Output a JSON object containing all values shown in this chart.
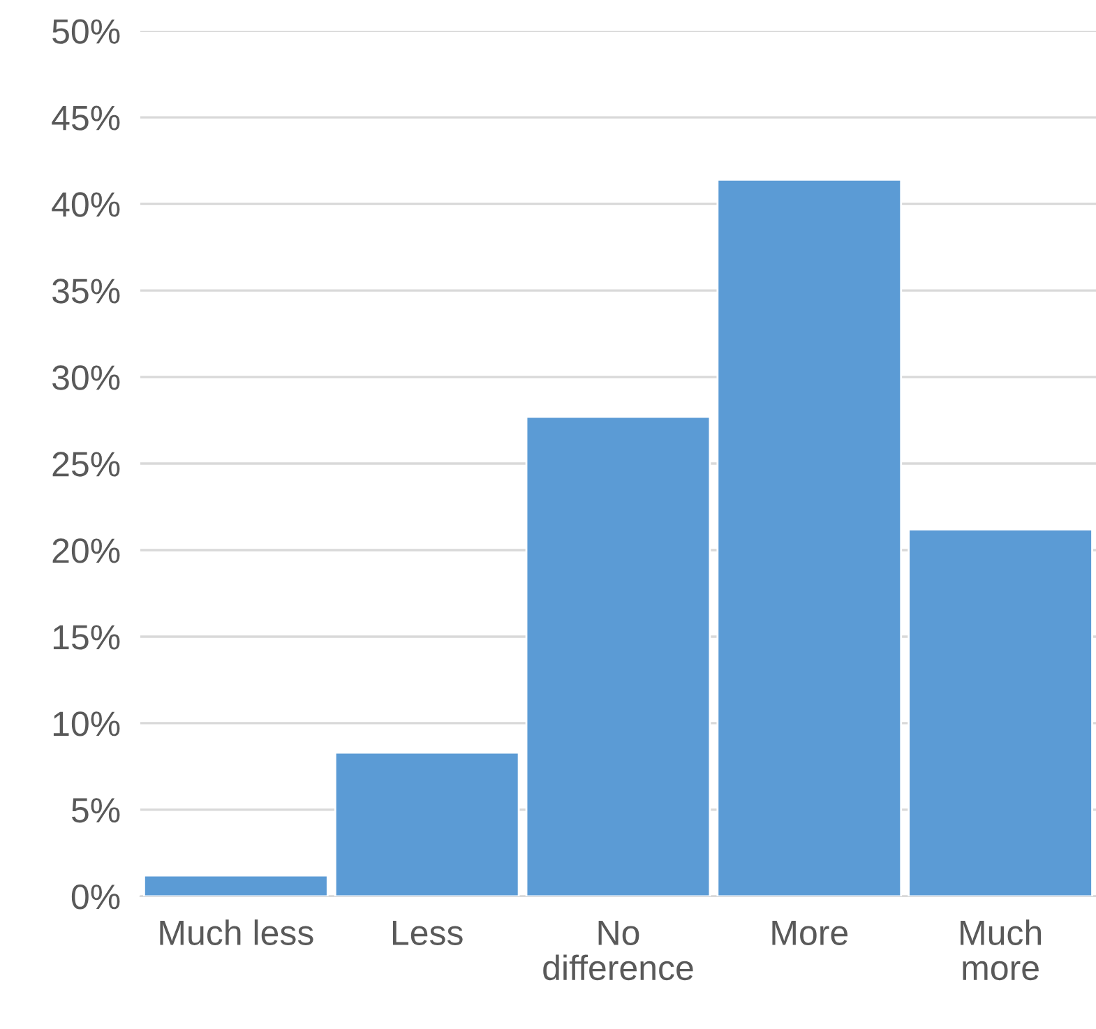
{
  "chart_data": {
    "type": "bar",
    "categories": [
      "Much less",
      "Less",
      "No\ndifference",
      "More",
      "Much\nmore"
    ],
    "values": [
      1.2,
      8.3,
      27.7,
      41.4,
      21.2
    ],
    "color": "#5b9bd5",
    "ylim": [
      0,
      50
    ],
    "yticks": [
      {
        "value": 0,
        "label": "0%"
      },
      {
        "value": 5,
        "label": "5%"
      },
      {
        "value": 10,
        "label": "10%"
      },
      {
        "value": 15,
        "label": "15%"
      },
      {
        "value": 20,
        "label": "20%"
      },
      {
        "value": 25,
        "label": "25%"
      },
      {
        "value": 30,
        "label": "30%"
      },
      {
        "value": 35,
        "label": "35%"
      },
      {
        "value": 40,
        "label": "40%"
      },
      {
        "value": 45,
        "label": "45%"
      },
      {
        "value": 50,
        "label": "50%"
      }
    ],
    "grid": "y"
  }
}
